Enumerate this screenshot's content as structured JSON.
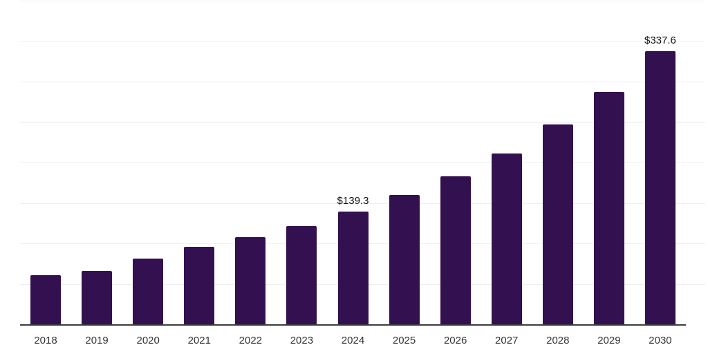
{
  "chart_data": {
    "type": "bar",
    "title": "",
    "categories": [
      "2018",
      "2019",
      "2020",
      "2021",
      "2022",
      "2023",
      "2024",
      "2025",
      "2026",
      "2027",
      "2028",
      "2029",
      "2030"
    ],
    "values": [
      61.0,
      66.1,
      81.4,
      95.9,
      108.1,
      121.7,
      139.3,
      160.0,
      183.0,
      211.1,
      246.8,
      286.8,
      337.6
    ],
    "value_labels": [
      {
        "category": "2024",
        "text": "$139.3"
      },
      {
        "category": "2030",
        "text": "$337.6"
      }
    ],
    "xlabel": "",
    "ylabel": "",
    "ylim": [
      0,
      400
    ],
    "gridline_step": 50,
    "grid": true,
    "y_tick_labels_visible": false,
    "legend": false,
    "colors": {
      "bar": "#331150",
      "gridline": "#efefef",
      "axis": "#3c3c3c",
      "tick_label": "#333333",
      "value_label": "#111111"
    }
  }
}
